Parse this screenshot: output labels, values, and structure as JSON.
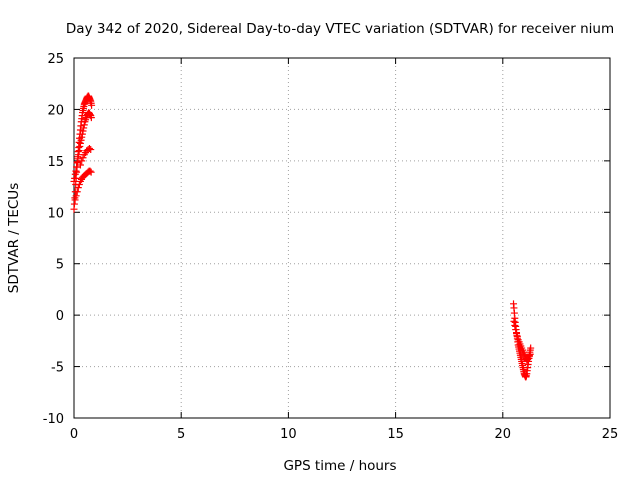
{
  "chart_data": {
    "type": "scatter",
    "title": "Day 342 of 2020, Sidereal Day-to-day VTEC variation (SDTVAR) for receiver nium",
    "xlabel": "GPS time / hours",
    "ylabel": "SDTVAR / TECUs",
    "xlim": [
      0,
      25
    ],
    "ylim": [
      -10,
      25
    ],
    "xticks": [
      0,
      5,
      10,
      15,
      20,
      25
    ],
    "yticks": [
      -10,
      -5,
      0,
      5,
      10,
      15,
      20,
      25
    ],
    "grid": true,
    "marker": "+",
    "series": [
      {
        "name": "SDTVAR",
        "color": "#ff0000",
        "x": [
          0.0,
          0.02,
          0.04,
          0.06,
          0.08,
          0.1,
          0.12,
          0.14,
          0.16,
          0.18,
          0.2,
          0.22,
          0.24,
          0.26,
          0.28,
          0.3,
          0.32,
          0.34,
          0.36,
          0.38,
          0.4,
          0.42,
          0.44,
          0.46,
          0.48,
          0.5,
          0.52,
          0.54,
          0.56,
          0.58,
          0.6,
          0.62,
          0.64,
          0.66,
          0.68,
          0.7,
          0.72,
          0.74,
          0.76,
          0.78,
          0.8,
          0.82,
          0.0,
          0.03,
          0.06,
          0.09,
          0.12,
          0.15,
          0.18,
          0.21,
          0.24,
          0.27,
          0.3,
          0.33,
          0.36,
          0.39,
          0.42,
          0.45,
          0.48,
          0.51,
          0.54,
          0.57,
          0.6,
          0.63,
          0.66,
          0.69,
          0.72,
          0.75,
          0.78,
          0.81,
          0.05,
          0.1,
          0.15,
          0.2,
          0.25,
          0.3,
          0.35,
          0.4,
          0.45,
          0.5,
          0.55,
          0.6,
          0.65,
          0.7,
          0.75,
          0.8,
          0.3,
          0.36,
          0.42,
          0.48,
          0.54,
          0.6,
          0.66,
          0.72,
          0.78,
          20.5,
          20.52,
          20.54,
          20.56,
          20.58,
          20.6,
          20.62,
          20.64,
          20.66,
          20.68,
          20.7,
          20.72,
          20.74,
          20.76,
          20.78,
          20.8,
          20.82,
          20.84,
          20.86,
          20.88,
          20.9,
          20.92,
          20.94,
          20.96,
          20.98,
          21.0,
          21.02,
          21.04,
          21.06,
          21.08,
          21.1,
          21.12,
          21.14,
          21.16,
          21.18,
          21.2,
          21.22,
          21.24,
          21.26,
          21.28,
          21.3,
          20.52,
          20.56,
          20.6,
          20.64,
          20.68,
          20.72,
          20.76,
          20.8,
          20.84,
          20.88,
          20.92,
          20.96,
          21.0,
          21.04,
          21.08,
          21.12,
          21.16,
          21.2,
          21.24,
          21.28
        ],
        "y": [
          10.3,
          10.8,
          11.4,
          12.0,
          12.7,
          13.3,
          13.9,
          14.4,
          14.9,
          15.4,
          15.9,
          16.3,
          16.8,
          17.2,
          17.6,
          18.0,
          18.4,
          18.8,
          19.1,
          19.4,
          19.7,
          19.9,
          20.1,
          20.3,
          20.5,
          20.6,
          20.7,
          20.8,
          20.9,
          21.0,
          21.1,
          21.2,
          21.2,
          21.3,
          21.3,
          21.2,
          21.1,
          21.0,
          20.9,
          20.8,
          20.6,
          20.4,
          13.0,
          13.3,
          13.7,
          14.0,
          14.4,
          14.8,
          15.2,
          15.6,
          16.0,
          16.4,
          16.7,
          17.0,
          17.3,
          17.6,
          17.9,
          18.2,
          18.5,
          18.8,
          19.0,
          19.2,
          19.4,
          19.5,
          19.6,
          19.7,
          19.6,
          19.5,
          19.4,
          19.2,
          11.2,
          11.6,
          12.0,
          12.4,
          12.7,
          13.0,
          13.2,
          13.4,
          13.5,
          13.6,
          13.7,
          13.8,
          13.9,
          14.0,
          14.0,
          13.9,
          14.6,
          15.0,
          15.3,
          15.6,
          15.8,
          16.0,
          16.1,
          16.2,
          16.1,
          1.1,
          0.7,
          0.2,
          -0.3,
          -0.7,
          -1.1,
          -1.4,
          -1.7,
          -2.0,
          -2.3,
          -2.6,
          -2.9,
          -3.1,
          -3.3,
          -3.5,
          -3.7,
          -3.9,
          -4.1,
          -4.3,
          -4.5,
          -4.7,
          -4.9,
          -5.1,
          -5.3,
          -5.5,
          -5.7,
          -5.8,
          -5.9,
          -6.0,
          -6.0,
          -5.9,
          -5.7,
          -5.4,
          -5.1,
          -4.8,
          -4.5,
          -4.2,
          -3.9,
          -3.6,
          -3.4,
          -3.2,
          -0.6,
          -1.0,
          -1.4,
          -1.8,
          -2.1,
          -2.4,
          -2.6,
          -2.8,
          -3.0,
          -3.2,
          -3.4,
          -3.6,
          -3.8,
          -4.0,
          -4.2,
          -4.4,
          -4.3,
          -4.2,
          -4.0,
          -3.8
        ]
      }
    ]
  }
}
